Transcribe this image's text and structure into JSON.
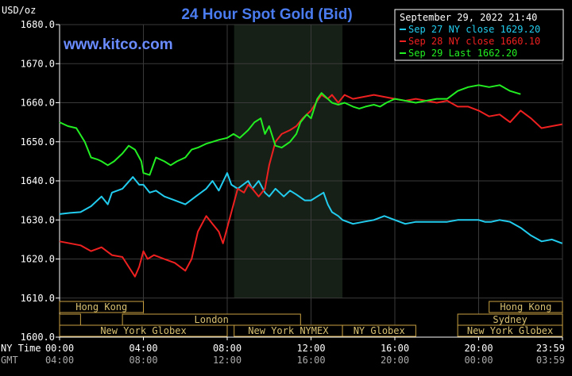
{
  "header": {
    "unit": "USD/oz",
    "title": "24 Hour Spot Gold (Bid)",
    "watermark": "www.kitco.com",
    "date": "September 29, 2022 21:40"
  },
  "colors": {
    "background": "#000000",
    "axis": "#ffffff",
    "grid": "#3a3a3a",
    "title": "#4a7cf0",
    "watermark": "#6a8cff",
    "shade": "#2a3a2a",
    "session_fill": "#000000",
    "session_border": "#c8a040",
    "session_text": "#d8c070"
  },
  "legend": {
    "entries": [
      {
        "label": "Sep 27 NY close 1629.20",
        "color": "#22ccee"
      },
      {
        "label": "Sep 28 NY close 1660.10",
        "color": "#ee2020"
      },
      {
        "label": "Sep 29 Last 1662.20",
        "color": "#22ee22"
      }
    ]
  },
  "axis_labels": {
    "ny_time": "NY Time",
    "gmt": "GMT"
  },
  "sessions": {
    "row1": [
      {
        "label": "Hong Kong",
        "start": 0.0,
        "end": 4.0
      },
      {
        "label": "Hong Kong",
        "start": 20.5,
        "end": 24.0
      }
    ],
    "row2": [
      {
        "label": "",
        "start": 0.0,
        "end": 1.0
      },
      {
        "label": "London",
        "start": 3.0,
        "end": 11.5
      },
      {
        "label": "Sydney",
        "start": 19.0,
        "end": 24.0
      }
    ],
    "row3": [
      {
        "label": "New York Globex",
        "start": 0.0,
        "end": 8.0
      },
      {
        "label": "New York NYMEX",
        "start": 8.33,
        "end": 13.5
      },
      {
        "label": "NY Globex",
        "start": 13.5,
        "end": 17.0
      },
      {
        "label": "New York Globex",
        "start": 19.0,
        "end": 24.0
      }
    ]
  },
  "chart_data": {
    "type": "line",
    "title": "24 Hour Spot Gold (Bid)",
    "ylabel": "USD/oz",
    "xlim": [
      0,
      24
    ],
    "ylim": [
      1600,
      1680
    ],
    "grid": true,
    "legend_position": "top-right",
    "shaded_period": [
      8.33,
      13.5
    ],
    "x_ticks": [
      "00:00",
      "04:00",
      "08:00",
      "12:00",
      "16:00",
      "20:00",
      "23:59"
    ],
    "x_tick_values": [
      0,
      4,
      8,
      12,
      16,
      20,
      24
    ],
    "gmt_ticks": [
      "04:00",
      "08:00",
      "12:00",
      "16:00",
      "20:00",
      "00:00",
      "03:59"
    ],
    "y_ticks": [
      "1680.0",
      "1670.0",
      "1660.0",
      "1650.0",
      "1640.0",
      "1630.0",
      "1620.0",
      "1610.0",
      "1600.0"
    ],
    "y_tick_values": [
      1680,
      1670,
      1660,
      1650,
      1640,
      1630,
      1620,
      1610,
      1600
    ],
    "series": [
      {
        "name": "Sep 27 NY close 1629.20",
        "color": "#22ccee",
        "x": [
          0.0,
          0.5,
          1.0,
          1.5,
          2.0,
          2.3,
          2.5,
          3.0,
          3.5,
          3.8,
          4.0,
          4.3,
          4.6,
          5.0,
          5.5,
          6.0,
          6.5,
          7.0,
          7.3,
          7.6,
          8.0,
          8.2,
          8.5,
          9.0,
          9.2,
          9.5,
          9.8,
          10.0,
          10.3,
          10.7,
          11.0,
          11.3,
          11.7,
          12.0,
          12.3,
          12.6,
          12.8,
          13.0,
          13.3,
          13.5,
          14.0,
          14.5,
          15.0,
          15.5,
          16.0,
          16.5,
          17.0,
          17.5,
          18.0,
          18.5,
          19.0,
          19.5,
          20.0,
          20.3,
          20.6,
          21.0,
          21.5,
          22.0,
          22.5,
          23.0,
          23.5,
          23.99
        ],
        "y": [
          1631.5,
          1631.8,
          1632.0,
          1633.5,
          1636.0,
          1634.0,
          1637.0,
          1638.0,
          1641.0,
          1639.0,
          1639.0,
          1637.0,
          1637.5,
          1636.0,
          1635.0,
          1634.0,
          1636.0,
          1638.0,
          1640.0,
          1637.5,
          1642.0,
          1639.0,
          1638.0,
          1640.0,
          1638.0,
          1640.0,
          1637.0,
          1636.0,
          1638.0,
          1636.0,
          1637.5,
          1636.5,
          1635.0,
          1635.0,
          1636.0,
          1637.0,
          1634.0,
          1632.0,
          1631.0,
          1630.0,
          1629.0,
          1629.5,
          1630.0,
          1631.0,
          1630.0,
          1629.0,
          1629.5,
          1629.5,
          1629.5,
          1629.5,
          1630.0,
          1630.0,
          1630.0,
          1629.5,
          1629.5,
          1630.0,
          1629.5,
          1628.0,
          1626.0,
          1624.5,
          1625.0,
          1624.0
        ]
      },
      {
        "name": "Sep 28 NY close 1660.10",
        "color": "#ee2020",
        "x": [
          0.0,
          0.5,
          1.0,
          1.5,
          2.0,
          2.5,
          3.0,
          3.3,
          3.6,
          3.8,
          4.0,
          4.2,
          4.5,
          5.0,
          5.5,
          6.0,
          6.3,
          6.6,
          7.0,
          7.3,
          7.6,
          7.8,
          8.0,
          8.3,
          8.5,
          8.8,
          9.0,
          9.2,
          9.5,
          9.8,
          10.0,
          10.3,
          10.6,
          11.0,
          11.3,
          11.6,
          12.0,
          12.3,
          12.5,
          12.8,
          13.0,
          13.3,
          13.6,
          14.0,
          14.5,
          15.0,
          15.5,
          16.0,
          16.5,
          17.0,
          17.5,
          18.0,
          18.5,
          19.0,
          19.5,
          20.0,
          20.5,
          21.0,
          21.5,
          22.0,
          22.5,
          23.0,
          23.5,
          23.99
        ],
        "y": [
          1624.5,
          1624.0,
          1623.5,
          1622.0,
          1623.0,
          1621.0,
          1620.5,
          1618.0,
          1615.5,
          1618.0,
          1622.0,
          1620.0,
          1621.0,
          1620.0,
          1619.0,
          1617.0,
          1620.0,
          1627.0,
          1631.0,
          1629.0,
          1627.0,
          1624.0,
          1628.0,
          1634.0,
          1638.0,
          1637.0,
          1639.0,
          1638.0,
          1636.0,
          1638.0,
          1644.0,
          1650.0,
          1652.0,
          1653.0,
          1654.0,
          1656.0,
          1658.0,
          1660.5,
          1662.0,
          1661.0,
          1662.0,
          1660.0,
          1662.0,
          1661.0,
          1661.5,
          1662.0,
          1661.5,
          1661.0,
          1660.5,
          1661.0,
          1660.5,
          1660.0,
          1660.5,
          1659.0,
          1659.0,
          1658.0,
          1656.5,
          1657.0,
          1655.0,
          1658.0,
          1656.0,
          1653.5,
          1654.0,
          1654.5
        ]
      },
      {
        "name": "Sep 29 Last 1662.20",
        "color": "#22ee22",
        "x": [
          0.0,
          0.4,
          0.8,
          1.2,
          1.5,
          1.8,
          2.0,
          2.3,
          2.6,
          3.0,
          3.3,
          3.6,
          3.9,
          4.0,
          4.3,
          4.6,
          5.0,
          5.3,
          5.6,
          6.0,
          6.3,
          6.6,
          7.0,
          7.3,
          7.6,
          8.0,
          8.3,
          8.6,
          9.0,
          9.3,
          9.6,
          9.8,
          10.0,
          10.3,
          10.6,
          11.0,
          11.3,
          11.5,
          11.8,
          12.0,
          12.3,
          12.5,
          12.8,
          13.0,
          13.3,
          13.6,
          14.0,
          14.3,
          14.6,
          15.0,
          15.3,
          15.6,
          16.0,
          16.5,
          17.0,
          17.5,
          18.0,
          18.5,
          19.0,
          19.5,
          20.0,
          20.5,
          21.0,
          21.5,
          22.0
        ],
        "y": [
          1655.0,
          1654.0,
          1653.5,
          1650.0,
          1646.0,
          1645.5,
          1645.0,
          1644.0,
          1645.0,
          1647.0,
          1649.0,
          1648.0,
          1645.0,
          1642.0,
          1641.5,
          1646.0,
          1645.0,
          1644.0,
          1645.0,
          1646.0,
          1648.0,
          1648.5,
          1649.5,
          1650.0,
          1650.5,
          1651.0,
          1652.0,
          1651.0,
          1653.0,
          1655.0,
          1656.0,
          1652.0,
          1654.0,
          1649.0,
          1648.5,
          1650.0,
          1652.0,
          1655.0,
          1657.0,
          1656.0,
          1661.0,
          1662.5,
          1661.0,
          1660.0,
          1659.5,
          1660.0,
          1659.0,
          1658.5,
          1659.0,
          1659.5,
          1659.0,
          1660.0,
          1661.0,
          1660.5,
          1660.0,
          1660.5,
          1661.0,
          1661.0,
          1663.0,
          1664.0,
          1664.5,
          1664.0,
          1664.5,
          1663.0,
          1662.2
        ]
      }
    ]
  }
}
